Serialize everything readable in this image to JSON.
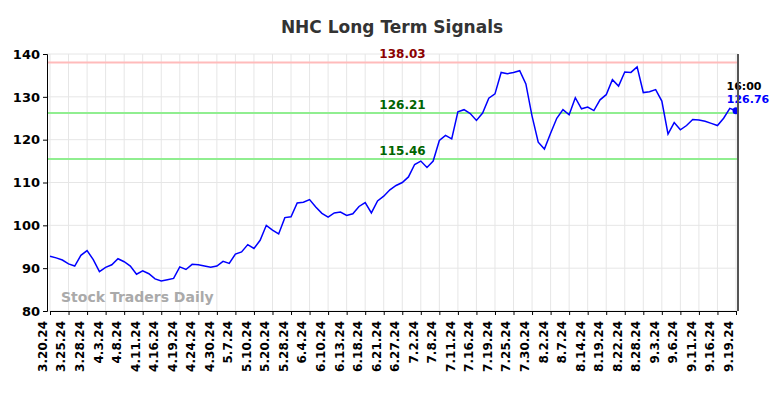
{
  "chart_data": {
    "type": "line",
    "title": "NHC Long Term Signals",
    "watermark": "Stock Traders Daily",
    "categories": [
      "3.20.24",
      null,
      null,
      "3.25.24",
      null,
      null,
      "3.28.24",
      null,
      null,
      "4.3.24",
      null,
      null,
      "4.8.24",
      null,
      null,
      "4.11.24",
      null,
      null,
      "4.16.24",
      null,
      null,
      "4.19.24",
      null,
      null,
      "4.24.24",
      null,
      null,
      "4.30.24",
      null,
      null,
      "5.7.24",
      null,
      null,
      "5.10.24",
      null,
      null,
      "5.20.24",
      null,
      null,
      "5.28.24",
      null,
      null,
      "6.4.24",
      null,
      null,
      "6.10.24",
      null,
      null,
      "6.13.24",
      null,
      null,
      "6.18.24",
      null,
      null,
      "6.21.24",
      null,
      null,
      "6.27.24",
      null,
      null,
      "7.2.24",
      null,
      null,
      "7.8.24",
      null,
      null,
      "7.11.24",
      null,
      null,
      "7.16.24",
      null,
      null,
      "7.19.24",
      null,
      null,
      "7.25.24",
      null,
      null,
      "7.30.24",
      null,
      null,
      "8.2.24",
      null,
      null,
      "8.7.24",
      null,
      null,
      "8.14.24",
      null,
      null,
      "8.19.24",
      null,
      null,
      "8.22.24",
      null,
      null,
      "8.28.24",
      null,
      null,
      "9.3.24",
      null,
      null,
      "9.6.24",
      null,
      null,
      "9.11.24",
      null,
      null,
      "9.16.24",
      null,
      null,
      "9.19.24"
    ],
    "series": [
      {
        "color": "#0000ff",
        "values": [
          92.8,
          92.4,
          91.9,
          91.0,
          90.5,
          93.0,
          94.1,
          92.0,
          89.2,
          90.2,
          90.8,
          92.2,
          91.5,
          90.5,
          88.6,
          89.4,
          88.7,
          87.5,
          87.0,
          87.3,
          87.6,
          90.3,
          89.7,
          90.9,
          90.8,
          90.5,
          90.2,
          90.5,
          91.6,
          91.1,
          93.3,
          93.8,
          95.5,
          94.6,
          96.5,
          100.0,
          98.9,
          98.0,
          101.8,
          102.0,
          105.2,
          105.4,
          106.0,
          104.3,
          102.8,
          101.9,
          102.9,
          103.1,
          102.3,
          102.7,
          104.4,
          105.3,
          102.9,
          105.7,
          106.8,
          108.3,
          109.3,
          110.0,
          111.3,
          114.2,
          115.0,
          113.5,
          115.0,
          119.8,
          121.0,
          120.2,
          126.5,
          127.0,
          126.1,
          124.5,
          126.2,
          129.7,
          130.7,
          135.7,
          135.4,
          135.7,
          136.1,
          133.0,
          125.5,
          119.4,
          117.8,
          121.5,
          125.0,
          127.0,
          125.8,
          129.8,
          127.2,
          127.6,
          126.8,
          129.3,
          130.5,
          134.0,
          132.5,
          135.8,
          135.7,
          137.0,
          131.0,
          131.2,
          131.7,
          129.0,
          121.3,
          124.0,
          122.3,
          123.3,
          124.7,
          124.6,
          124.3,
          123.8,
          123.3,
          125.0,
          127.3,
          126.76
        ]
      }
    ],
    "hlines": [
      {
        "value": 138.03,
        "color": "#ffbbbb",
        "label_color": "#8b0000"
      },
      {
        "value": 126.21,
        "color": "#90ee90",
        "label_color": "#006400"
      },
      {
        "value": 115.46,
        "color": "#90ee90",
        "label_color": "#006400"
      }
    ],
    "last_label": {
      "time": "16:00"
    },
    "ylim": [
      80,
      140
    ],
    "yticks": [
      80,
      90,
      100,
      110,
      120,
      130,
      140
    ],
    "grid": true
  }
}
